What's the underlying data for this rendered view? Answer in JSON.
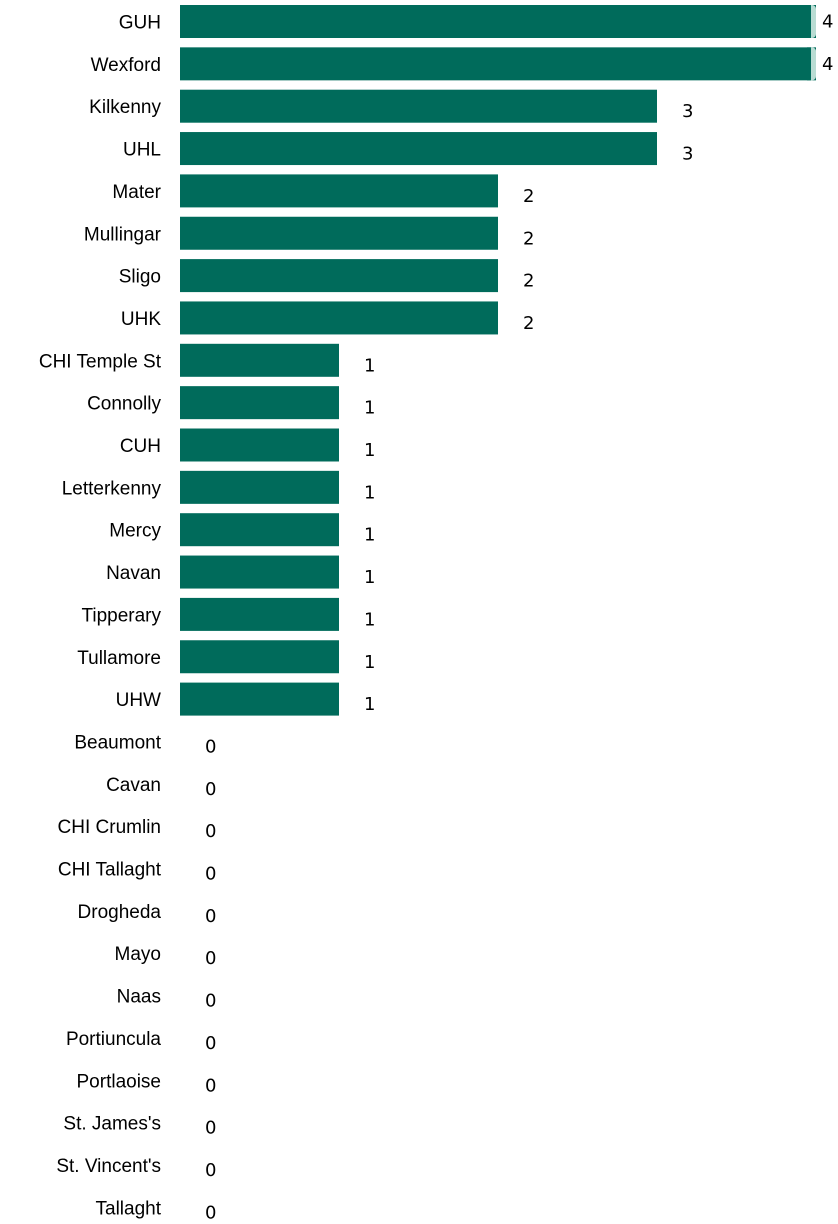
{
  "chart_data": {
    "type": "bar",
    "orientation": "horizontal",
    "categories": [
      "GUH",
      "Wexford",
      "Kilkenny",
      "UHL",
      "Mater",
      "Mullingar",
      "Sligo",
      "UHK",
      "CHI Temple St",
      "Connolly",
      "CUH",
      "Letterkenny",
      "Mercy",
      "Navan",
      "Tipperary",
      "Tullamore",
      "UHW",
      "Beaumont",
      "Cavan",
      "CHI Crumlin",
      "CHI Tallaght",
      "Drogheda",
      "Mayo",
      "Naas",
      "Portiuncula",
      "Portlaoise",
      "St. James's",
      "St. Vincent's",
      "Tallaght"
    ],
    "values": [
      4,
      4,
      3,
      3,
      2,
      2,
      2,
      2,
      1,
      1,
      1,
      1,
      1,
      1,
      1,
      1,
      1,
      0,
      0,
      0,
      0,
      0,
      0,
      0,
      0,
      0,
      0,
      0,
      0
    ],
    "xlim": [
      0,
      4
    ],
    "grid": false,
    "legend": "none",
    "colors": {
      "bar": "#006B5B",
      "bar_end_highlight": "#B9DCD3"
    }
  }
}
